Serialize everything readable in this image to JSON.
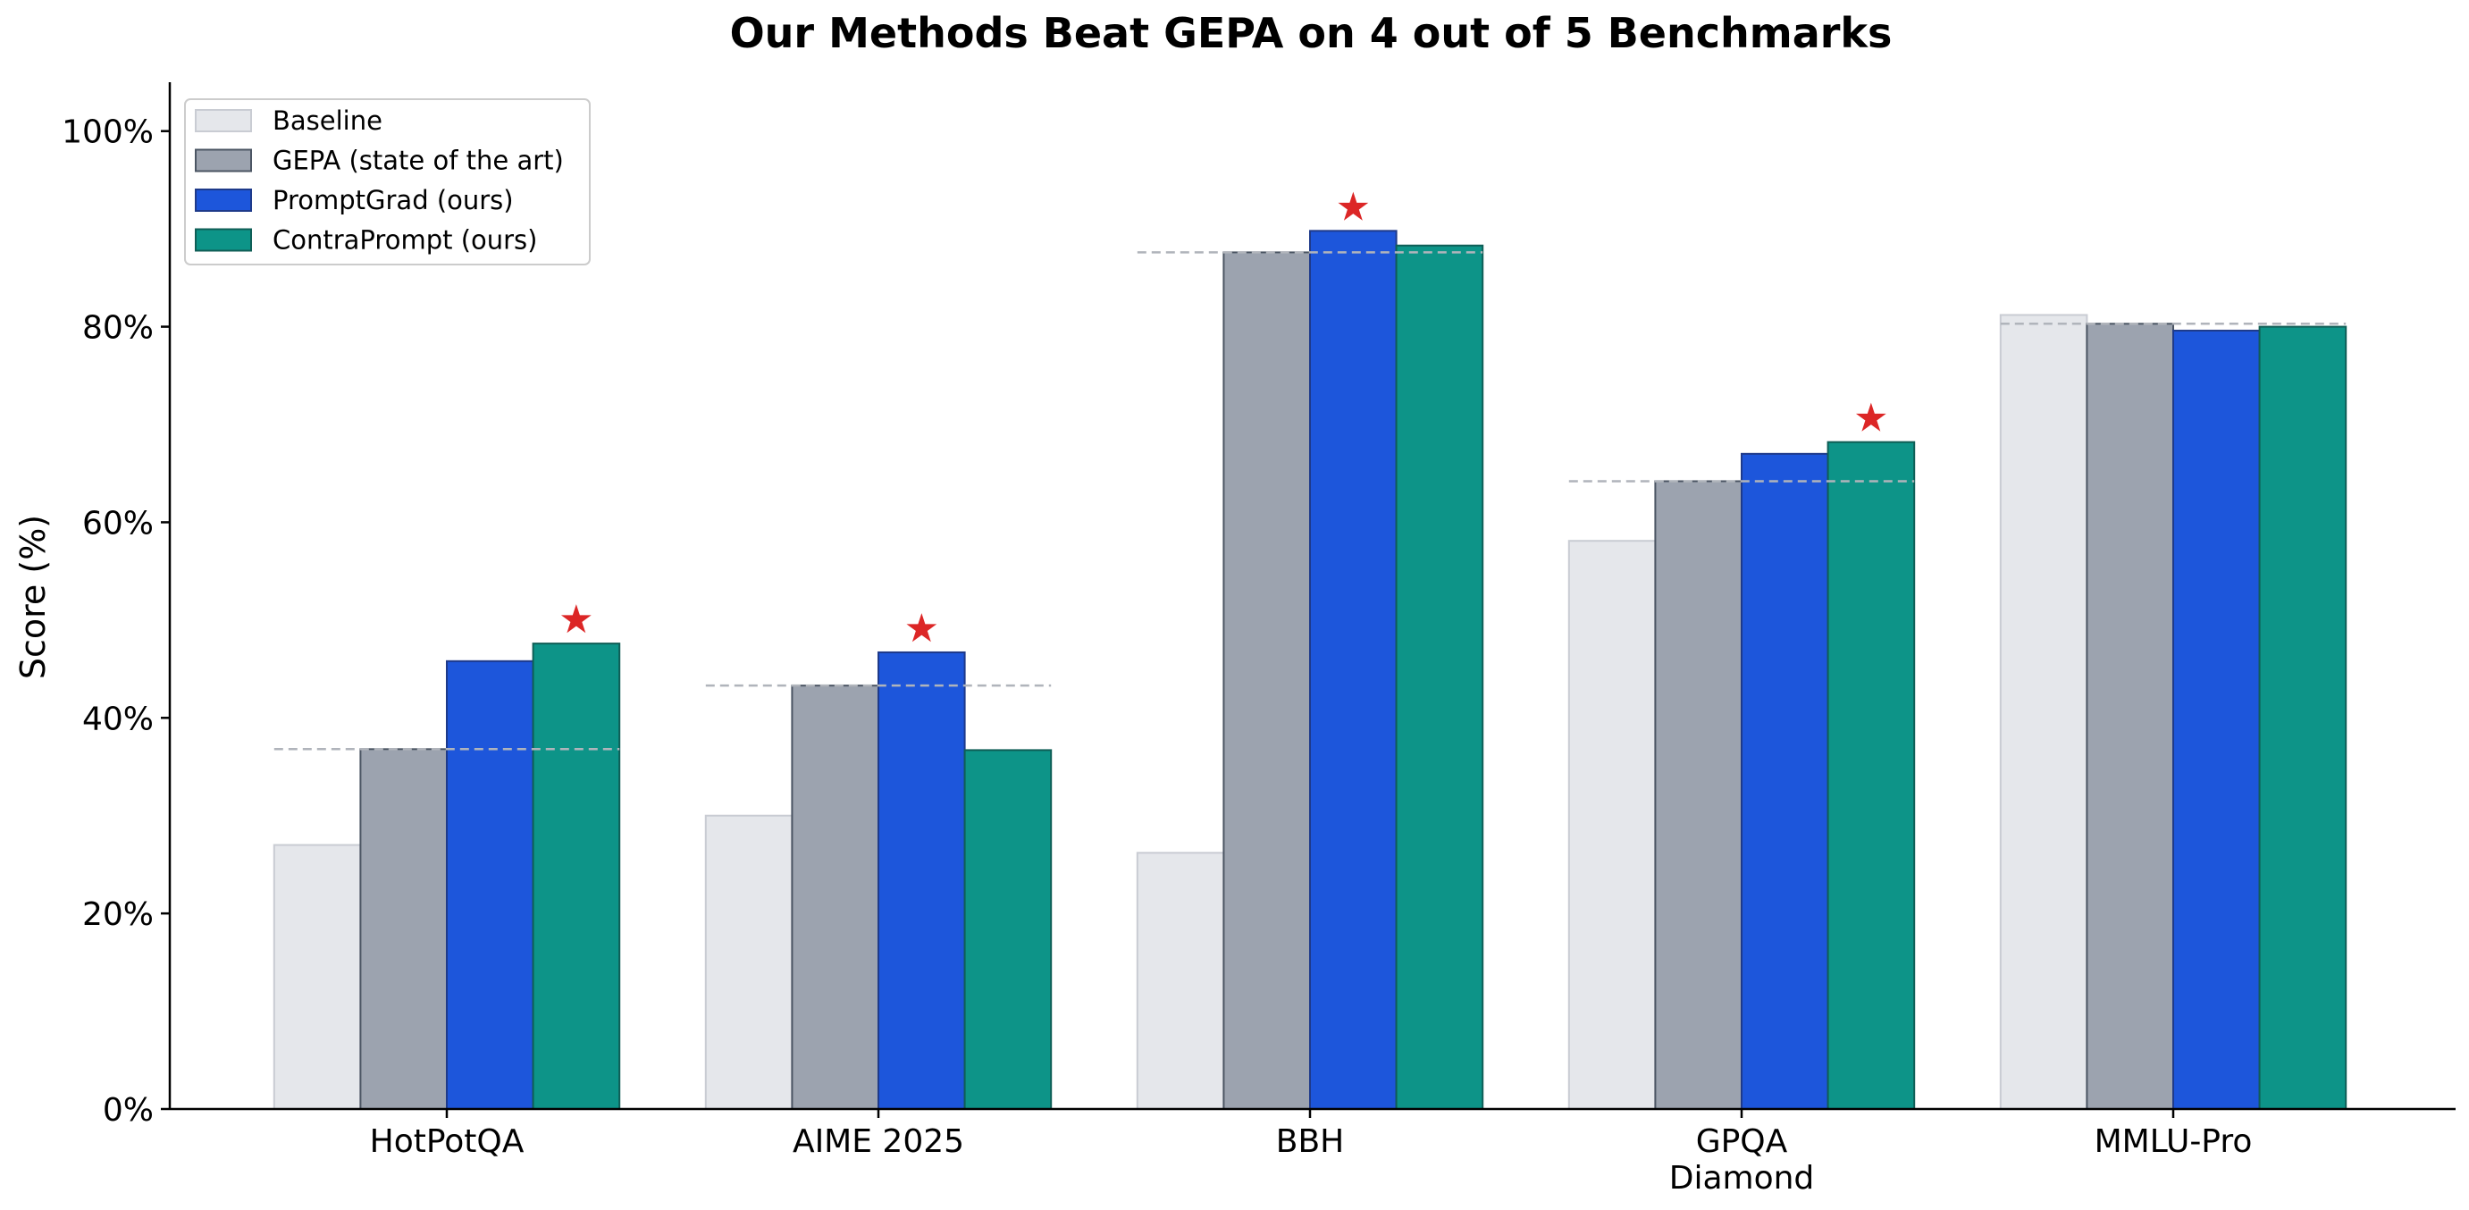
{
  "chart_data": {
    "type": "bar",
    "title": "Our Methods Beat GEPA on 4 out of 5 Benchmarks",
    "xlabel": "",
    "ylabel": "Score (%)",
    "ylim": [
      0,
      105
    ],
    "yticks": [
      0,
      20,
      40,
      60,
      80,
      100
    ],
    "ytick_labels": [
      "0%",
      "20%",
      "40%",
      "60%",
      "80%",
      "100%"
    ],
    "categories": [
      [
        "HotPotQA"
      ],
      [
        "AIME 2025"
      ],
      [
        "BBH"
      ],
      [
        "GPQA",
        "Diamond"
      ],
      [
        "MMLU-Pro"
      ]
    ],
    "series": [
      {
        "name": "Baseline",
        "color": "#e5e7eb",
        "edge": "#c9ccd3",
        "values": [
          27.0,
          30.0,
          26.2,
          58.1,
          81.2
        ]
      },
      {
        "name": "GEPA (state of the art)",
        "color": "#9ca3af",
        "edge": "#4b5563",
        "values": [
          36.8,
          43.3,
          87.6,
          64.2,
          80.3
        ]
      },
      {
        "name": "PromptGrad (ours)",
        "color": "#1d56db",
        "edge": "#1e3a8a",
        "values": [
          45.8,
          46.7,
          89.8,
          67.0,
          79.6
        ]
      },
      {
        "name": "ContraPrompt (ours)",
        "color": "#0d9488",
        "edge": "#0f5e56",
        "values": [
          47.6,
          36.7,
          88.3,
          68.2,
          80.0
        ]
      }
    ],
    "reference_lines": {
      "based_on": "GEPA (state of the art)",
      "style": "dashed",
      "color": "#b0b4bb",
      "values": [
        36.8,
        43.3,
        87.6,
        64.2,
        80.3
      ]
    },
    "stars": {
      "symbol": "★",
      "color": "#dc2626",
      "series_index_per_category": [
        3,
        2,
        2,
        3,
        null
      ]
    },
    "grid": false,
    "legend_placement": "top-left"
  }
}
